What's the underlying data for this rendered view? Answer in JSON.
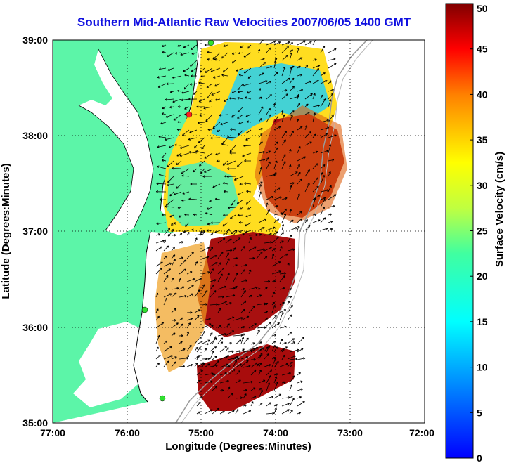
{
  "title": "Southern Mid-Atlantic Raw Velocities 2007/06/05 1400 GMT",
  "axes": {
    "xlabel": "Longitude (Degrees:Minutes)",
    "ylabel": "Latitude (Degrees:Minutes)",
    "x_ticks": [
      "77:00",
      "76:00",
      "75:00",
      "74:00",
      "73:00",
      "72:00"
    ],
    "y_ticks": [
      "39:00",
      "38:00",
      "37:00",
      "36:00",
      "35:00"
    ]
  },
  "colorbar": {
    "label": "Surface Velocity (cm/s)",
    "ticks": [
      "0",
      "5",
      "10",
      "15",
      "20",
      "25",
      "30",
      "35",
      "40",
      "45",
      "50"
    ]
  },
  "colors": {
    "land": "#5cf5a8",
    "title": "#1010e0",
    "gridline": "#000000",
    "bathymetry": "#9a9a9a"
  }
}
